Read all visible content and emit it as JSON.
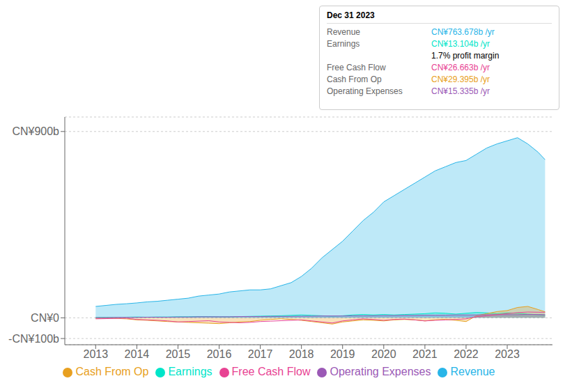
{
  "chart_data": {
    "type": "area",
    "x": [
      2013.0,
      2013.25,
      2013.5,
      2013.75,
      2014.0,
      2014.25,
      2014.5,
      2014.75,
      2015.0,
      2015.25,
      2015.5,
      2015.75,
      2016.0,
      2016.25,
      2016.5,
      2016.75,
      2017.0,
      2017.25,
      2017.5,
      2017.75,
      2018.0,
      2018.25,
      2018.5,
      2018.75,
      2019.0,
      2019.25,
      2019.5,
      2019.75,
      2020.0,
      2020.25,
      2020.5,
      2020.75,
      2021.0,
      2021.25,
      2021.5,
      2021.75,
      2022.0,
      2022.25,
      2022.5,
      2022.75,
      2023.0,
      2023.25,
      2023.5,
      2023.75,
      2023.92
    ],
    "series": [
      {
        "name": "Revenue",
        "color": "#29b5e8",
        "type": "area",
        "values": [
          55,
          60,
          65,
          68,
          72,
          77,
          80,
          85,
          90,
          95,
          105,
          110,
          115,
          125,
          130,
          135,
          135,
          140,
          155,
          170,
          200,
          240,
          290,
          330,
          370,
          420,
          470,
          510,
          560,
          590,
          620,
          650,
          680,
          710,
          730,
          750,
          760,
          790,
          820,
          840,
          855,
          870,
          840,
          800,
          764
        ]
      },
      {
        "name": "Earnings",
        "color": "#00e5c9",
        "type": "area",
        "values": [
          2,
          2,
          2,
          3,
          4,
          3,
          4,
          4,
          5,
          5,
          6,
          6,
          5,
          5,
          6,
          7,
          8,
          9,
          10,
          12,
          14,
          12,
          10,
          8,
          10,
          14,
          16,
          14,
          16,
          14,
          16,
          18,
          20,
          24,
          22,
          18,
          22,
          26,
          24,
          20,
          24,
          22,
          18,
          15,
          13
        ]
      },
      {
        "name": "Free Cash Flow",
        "color": "#e84393",
        "type": "line",
        "values": [
          -5,
          -4,
          -3,
          -2,
          -8,
          -10,
          -12,
          -15,
          -20,
          -18,
          -16,
          -14,
          -20,
          -22,
          -24,
          -22,
          -18,
          -16,
          -14,
          -12,
          -10,
          -15,
          -20,
          -25,
          -15,
          -10,
          -5,
          -8,
          -12,
          -8,
          -6,
          -10,
          -15,
          -12,
          -10,
          -8,
          -5,
          5,
          10,
          15,
          20,
          25,
          28,
          27,
          27
        ]
      },
      {
        "name": "Cash From Op",
        "color": "#e8a020",
        "type": "area",
        "values": [
          -3,
          -2,
          -3,
          -5,
          -10,
          -12,
          -15,
          -18,
          -20,
          -22,
          -24,
          -26,
          -28,
          -24,
          -20,
          -18,
          -12,
          -8,
          -5,
          -8,
          -12,
          -18,
          -24,
          -30,
          -20,
          -15,
          -10,
          -12,
          -15,
          -10,
          -8,
          -10,
          -15,
          -10,
          -8,
          -12,
          -18,
          10,
          20,
          30,
          35,
          50,
          55,
          40,
          29
        ]
      },
      {
        "name": "Operating Expenses",
        "color": "#9b59b6",
        "type": "area",
        "values": [
          1,
          1,
          2,
          2,
          2,
          3,
          3,
          3,
          4,
          4,
          5,
          5,
          5,
          5,
          6,
          6,
          6,
          7,
          7,
          7,
          8,
          8,
          9,
          9,
          9,
          10,
          10,
          10,
          11,
          11,
          12,
          12,
          13,
          13,
          13,
          14,
          14,
          14,
          15,
          15,
          15,
          15,
          16,
          16,
          15
        ]
      }
    ],
    "xlim": [
      2012.25,
      2024.1
    ],
    "xticks": [
      2013,
      2014,
      2015,
      2016,
      2017,
      2018,
      2019,
      2020,
      2021,
      2022,
      2023
    ],
    "ylim": [
      -130,
      970
    ],
    "yticks": [
      {
        "value": -100,
        "label": "-CN¥100b"
      },
      {
        "value": 0,
        "label": "CN¥0"
      },
      {
        "value": 900,
        "label": "CN¥900b"
      }
    ],
    "grid": true,
    "legend": "bottom",
    "annotations": [
      {
        "text": "Dec 31 2023"
      },
      {
        "label": "Revenue",
        "text": "CN¥763.678b /yr",
        "color": "#29b5e8"
      },
      {
        "label": "Earnings",
        "text": "CN¥13.104b /yr",
        "color": "#00e5c9"
      },
      {
        "text": "1.7% profit margin"
      },
      {
        "label": "Free Cash Flow",
        "text": "CN¥26.663b /yr",
        "color": "#e84393"
      },
      {
        "label": "Cash From Op",
        "text": "CN¥29.395b /yr",
        "color": "#e8a020"
      },
      {
        "label": "Operating Expenses",
        "text": "CN¥15.335b /yr",
        "color": "#9b59b6"
      }
    ]
  }
}
